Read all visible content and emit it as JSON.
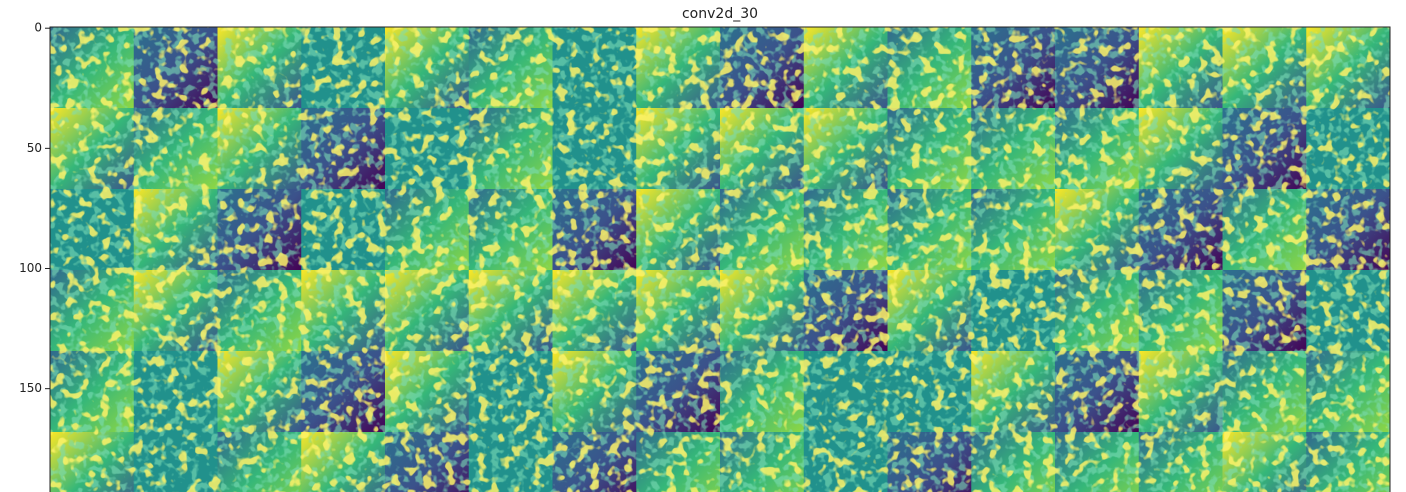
{
  "chart_data": {
    "type": "image",
    "title": "conv2d_30",
    "ylim": [
      -0.5,
      193
    ],
    "yticks": [
      0,
      50,
      100,
      150
    ],
    "grid": false
  }
}
